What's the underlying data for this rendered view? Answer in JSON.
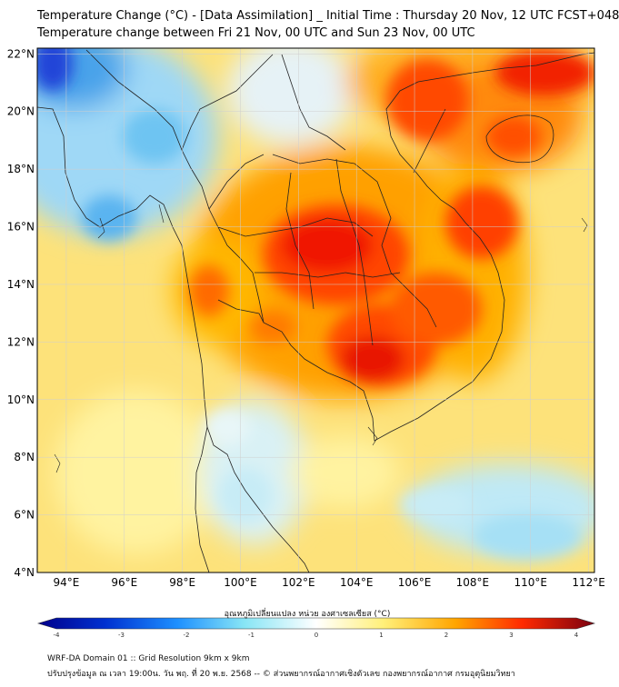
{
  "title_line1": "Temperature Change (°C) - [Data Assimilation] _ Initial Time : Thursday 20 Nov, 12 UTC FCST+048",
  "title_line2": "Temperature change between Fri 21 Nov, 00 UTC and Sun 23 Nov, 00 UTC",
  "map": {
    "lat_labels": [
      "22°N",
      "20°N",
      "18°N",
      "16°N",
      "14°N",
      "12°N",
      "10°N",
      "8°N",
      "6°N",
      "4°N"
    ],
    "lon_labels": [
      "94°E",
      "96°E",
      "98°E",
      "100°E",
      "102°E",
      "104°E",
      "106°E",
      "108°E",
      "110°E",
      "112°E"
    ],
    "lat_range": [
      4,
      22.2
    ],
    "lon_range": [
      93,
      112.2
    ]
  },
  "colorbar": {
    "label": "อุณหภูมิเปลี่ยนแปลง หน่วย องศาเซลเซียส (°C)",
    "ticks": [
      "-4",
      "-3",
      "-2",
      "-1",
      "0",
      "1",
      "2",
      "3",
      "4"
    ],
    "range": [
      -4,
      4
    ]
  },
  "footer": {
    "line1": "WRF-DA Domain 01 :: Grid Resolution 9km x 9km",
    "line2": "ปรับปรุงข้อมูล ณ เวลา 19:00น. วัน พฤ. ที่ 20 พ.ย. 2568 -- © ส่วนพยากรณ์อากาศเชิงตัวเลข กองพยากรณ์อากาศ กรมอุตุนิยมวิทยา"
  },
  "colors": {
    "cold_max": "#00008b",
    "cool": "#1e90ff",
    "light_cool": "#87e5f5",
    "neutral": "#ffffff",
    "warm_light": "#fff4a0",
    "warm": "#ffa500",
    "hot": "#ff2a00",
    "hot_max": "#7a0010"
  }
}
